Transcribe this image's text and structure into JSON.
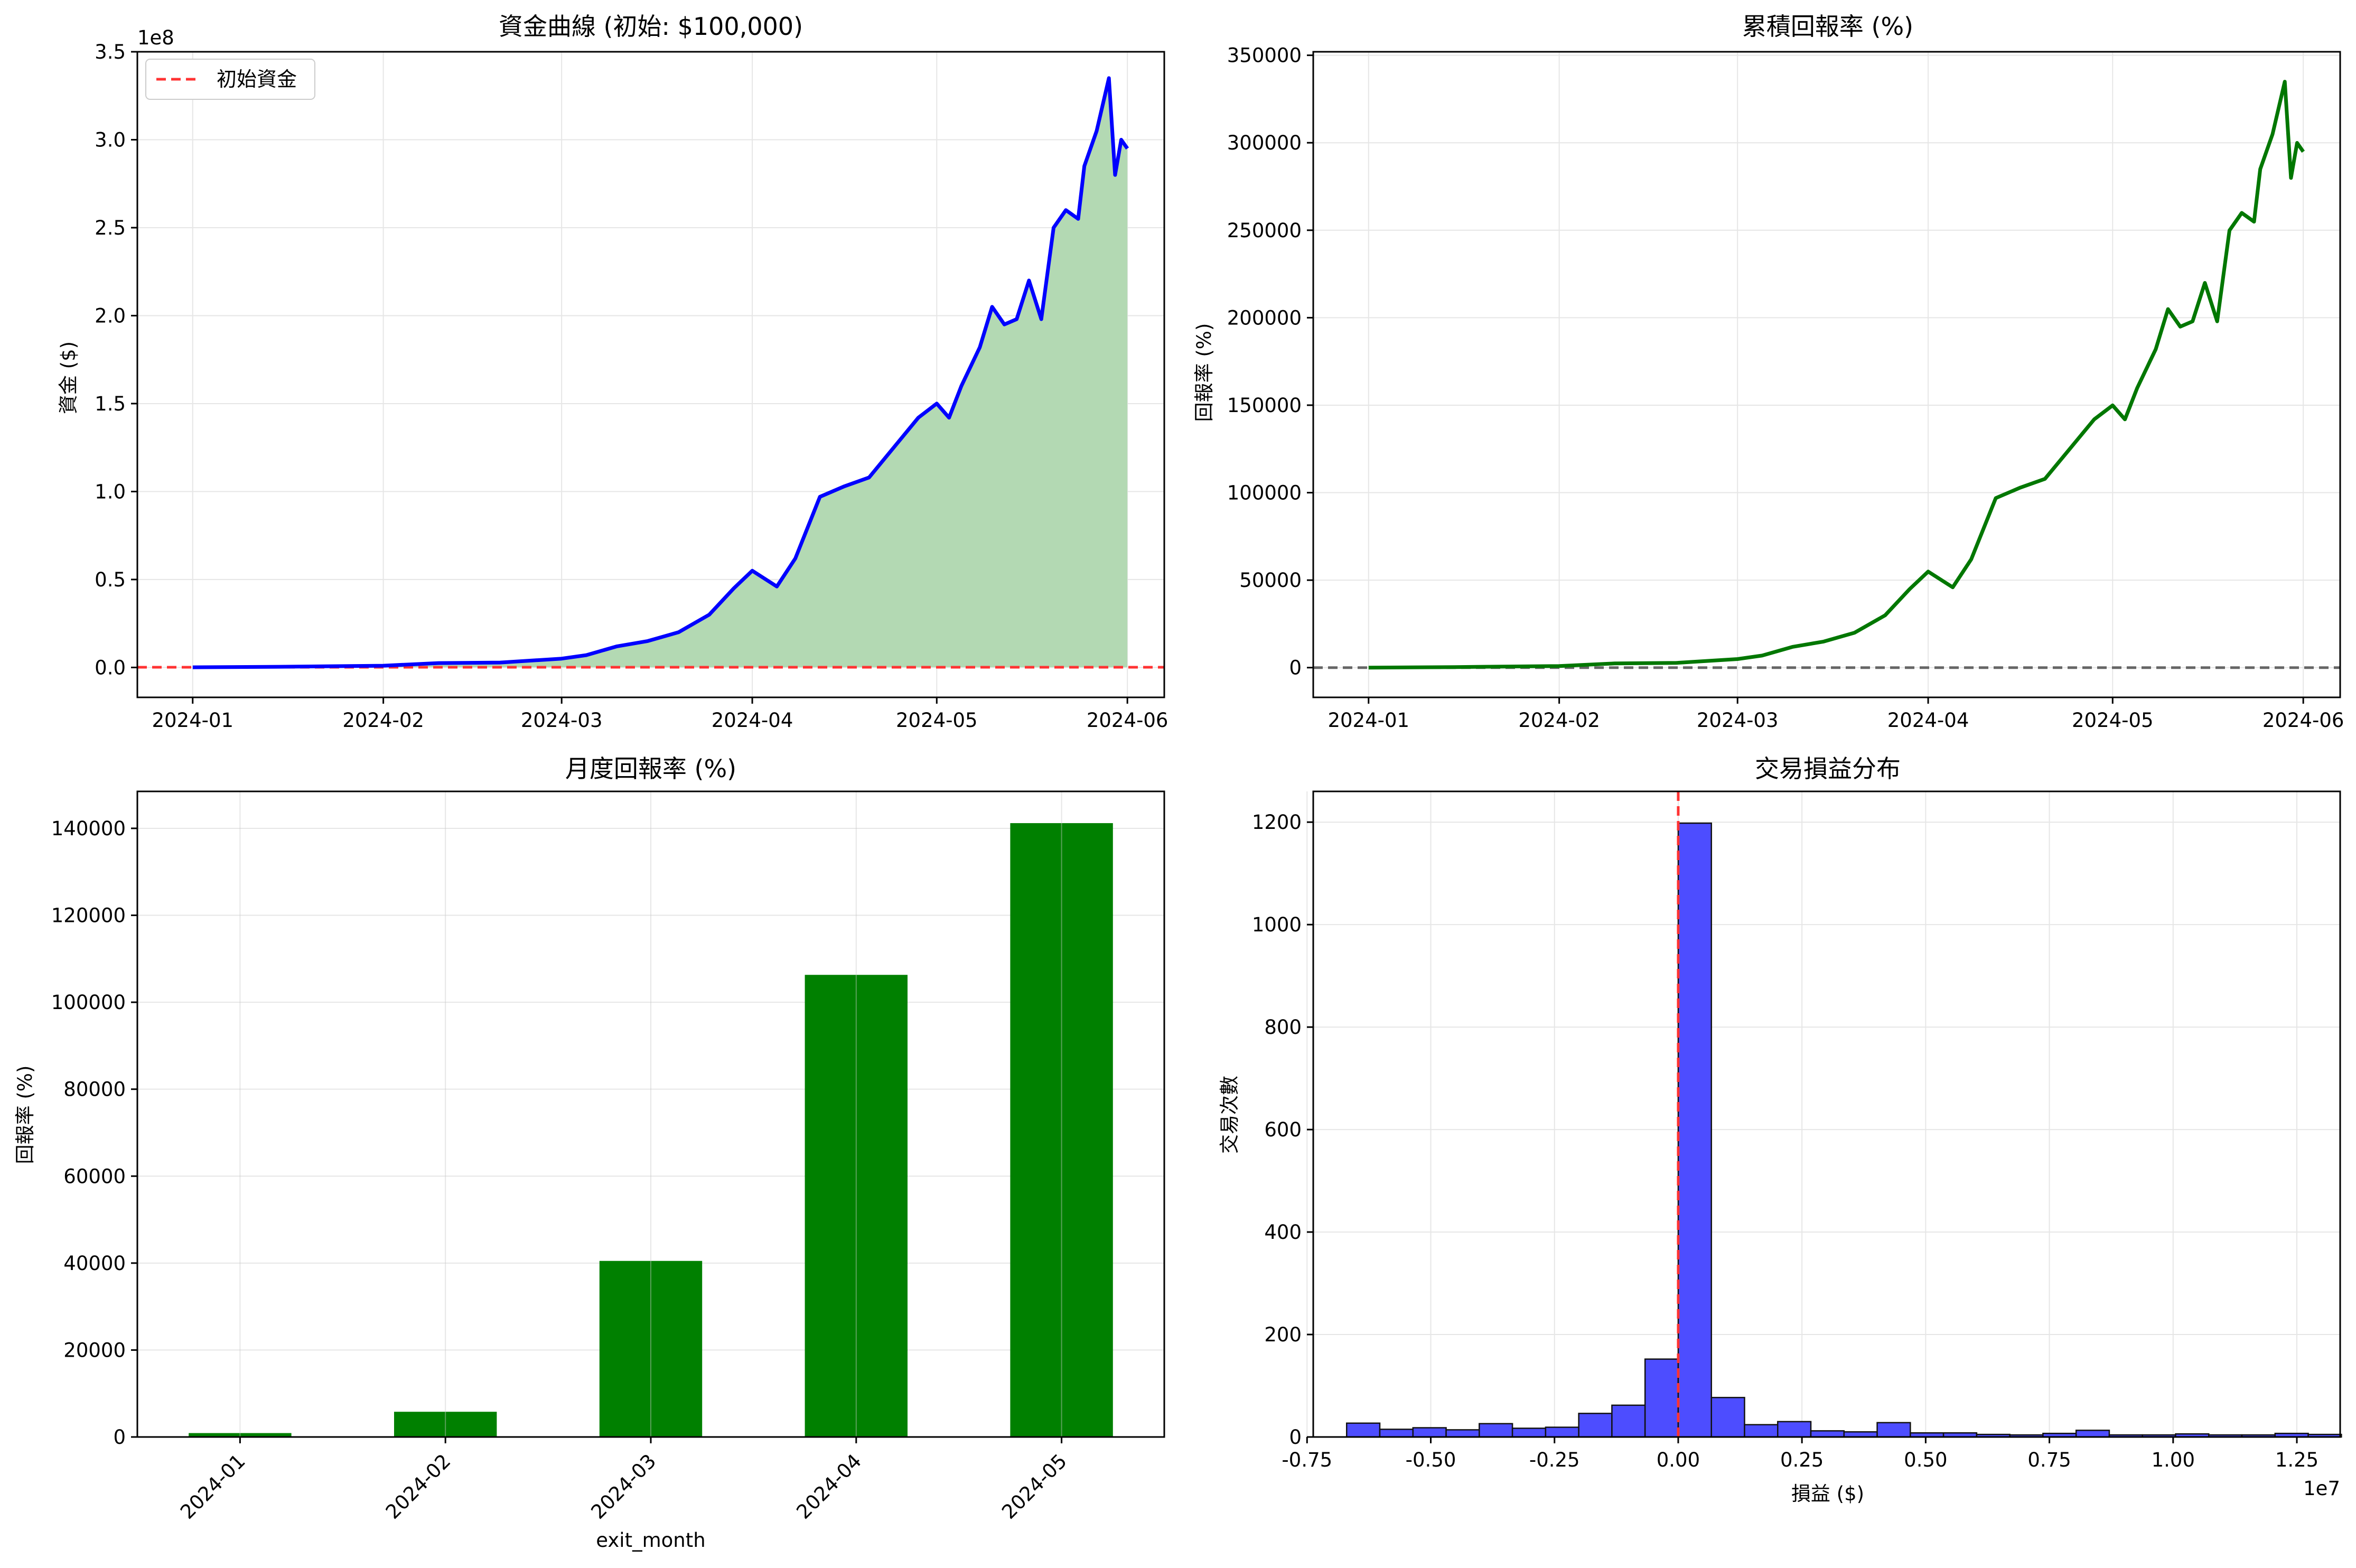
{
  "colors": {
    "equity_line": "#0000ff",
    "equity_fill": "#b3d9b3",
    "initial_line": "#ff3333",
    "return_line": "#007700",
    "zero_line": "#666666",
    "monthly_bar": "#008000",
    "hist_bar": "#4d4dff",
    "hist_edge": "#111111",
    "hist_zero_line": "#ff3333",
    "grid": "#e6e6e6"
  },
  "chart_data": [
    {
      "type": "area",
      "title": "資金曲線 (初始: $100,000)",
      "xlabel": "",
      "ylabel": "資金 ($)",
      "y_offset_text": "1e8",
      "xlim": [
        "2023-12-23",
        "2024-06-07"
      ],
      "ylim": [
        -0.17,
        3.5
      ],
      "x_ticks": [
        "2024-01",
        "2024-02",
        "2024-03",
        "2024-04",
        "2024-05",
        "2024-06"
      ],
      "y_ticks": [
        "0.0",
        "0.5",
        "1.0",
        "1.5",
        "2.0",
        "2.5",
        "3.0",
        "3.5"
      ],
      "legend": {
        "position": "top-left",
        "entries": [
          "初始資金"
        ]
      },
      "reference_line": {
        "value": 0.001,
        "label": "初始資金"
      },
      "grid": true,
      "series": [
        {
          "x": [
            "2024-01-01",
            "2024-01-15",
            "2024-02-01",
            "2024-02-10",
            "2024-02-20",
            "2024-03-01",
            "2024-03-05",
            "2024-03-10",
            "2024-03-15",
            "2024-03-20",
            "2024-03-25",
            "2024-03-29",
            "2024-04-01",
            "2024-04-05",
            "2024-04-08",
            "2024-04-12",
            "2024-04-16",
            "2024-04-20",
            "2024-04-24",
            "2024-04-28",
            "2024-05-01",
            "2024-05-03",
            "2024-05-05",
            "2024-05-08",
            "2024-05-10",
            "2024-05-12",
            "2024-05-14",
            "2024-05-16",
            "2024-05-18",
            "2024-05-20",
            "2024-05-22",
            "2024-05-24",
            "2024-05-25",
            "2024-05-27",
            "2024-05-28",
            "2024-05-29",
            "2024-05-30",
            "2024-05-31",
            "2024-06-01"
          ],
          "values": [
            0.001,
            0.004,
            0.01,
            0.025,
            0.028,
            0.05,
            0.07,
            0.12,
            0.15,
            0.2,
            0.3,
            0.45,
            0.55,
            0.46,
            0.62,
            0.97,
            1.03,
            1.08,
            1.25,
            1.42,
            1.5,
            1.42,
            1.6,
            1.82,
            2.05,
            1.95,
            1.98,
            2.2,
            1.98,
            2.5,
            2.6,
            2.55,
            2.85,
            3.05,
            3.2,
            3.35,
            2.8,
            3.0,
            2.95
          ]
        }
      ]
    },
    {
      "type": "line",
      "title": "累積回報率 (%)",
      "xlabel": "",
      "ylabel": "回報率 (%)",
      "xlim": [
        "2023-12-23",
        "2024-06-07"
      ],
      "ylim": [
        -17000,
        352000
      ],
      "x_ticks": [
        "2024-01",
        "2024-02",
        "2024-03",
        "2024-04",
        "2024-05",
        "2024-06"
      ],
      "y_ticks": [
        "0",
        "50000",
        "100000",
        "150000",
        "200000",
        "250000",
        "300000",
        "350000"
      ],
      "reference_line": {
        "value": 0
      },
      "grid": true,
      "series": [
        {
          "x": [
            "2024-01-01",
            "2024-01-15",
            "2024-02-01",
            "2024-02-10",
            "2024-02-20",
            "2024-03-01",
            "2024-03-05",
            "2024-03-10",
            "2024-03-15",
            "2024-03-20",
            "2024-03-25",
            "2024-03-29",
            "2024-04-01",
            "2024-04-05",
            "2024-04-08",
            "2024-04-12",
            "2024-04-16",
            "2024-04-20",
            "2024-04-24",
            "2024-04-28",
            "2024-05-01",
            "2024-05-03",
            "2024-05-05",
            "2024-05-08",
            "2024-05-10",
            "2024-05-12",
            "2024-05-14",
            "2024-05-16",
            "2024-05-18",
            "2024-05-20",
            "2024-05-22",
            "2024-05-24",
            "2024-05-25",
            "2024-05-27",
            "2024-05-28",
            "2024-05-29",
            "2024-05-30",
            "2024-05-31",
            "2024-06-01"
          ],
          "values": [
            0,
            300,
            900,
            2400,
            2700,
            4900,
            6900,
            11900,
            14900,
            19900,
            29900,
            44900,
            54900,
            45900,
            61900,
            96900,
            102900,
            107900,
            124900,
            141900,
            149900,
            141900,
            159900,
            181900,
            204900,
            194900,
            197900,
            219900,
            197900,
            249900,
            259900,
            254900,
            284900,
            304900,
            319900,
            334900,
            279900,
            299900,
            294900
          ]
        }
      ]
    },
    {
      "type": "bar",
      "title": "月度回報率 (%)",
      "xlabel": "exit_month",
      "ylabel": "回報率 (%)",
      "categories": [
        "2024-01",
        "2024-02",
        "2024-03",
        "2024-04",
        "2024-05"
      ],
      "values": [
        900,
        5800,
        40500,
        106300,
        141200
      ],
      "ylim": [
        0,
        148500
      ],
      "y_ticks": [
        "0",
        "20000",
        "40000",
        "60000",
        "80000",
        "100000",
        "120000",
        "140000"
      ],
      "grid": true
    },
    {
      "type": "bar",
      "title": "交易損益分布",
      "xlabel": "損益 ($)",
      "ylabel": "交易次數",
      "x_offset_text": "1e7",
      "xlim": [
        -0.7375,
        1.3375
      ],
      "ylim": [
        0,
        1260
      ],
      "x_ticks": [
        "-0.75",
        "-0.50",
        "-0.25",
        "0.00",
        "0.25",
        "0.50",
        "0.75",
        "1.00",
        "1.25"
      ],
      "y_ticks": [
        "0",
        "200",
        "400",
        "600",
        "800",
        "1000",
        "1200"
      ],
      "bin_edges": [
        -0.67,
        -0.603,
        -0.536,
        -0.469,
        -0.402,
        -0.335,
        -0.268,
        -0.201,
        -0.134,
        -0.067,
        0,
        0.067,
        0.134,
        0.201,
        0.268,
        0.335,
        0.402,
        0.469,
        0.536,
        0.603,
        0.67,
        0.737,
        0.804,
        0.871,
        0.938,
        1.005,
        1.072,
        1.139,
        1.206,
        1.273
      ],
      "counts": [
        27,
        15,
        18,
        14,
        26,
        17,
        19,
        46,
        62,
        152,
        1198,
        77,
        24,
        30,
        12,
        10,
        28,
        8,
        8,
        5,
        4,
        7,
        13,
        4,
        4,
        6,
        4,
        4,
        7,
        5
      ],
      "reference_line": {
        "value": 0
      },
      "grid": true
    }
  ]
}
